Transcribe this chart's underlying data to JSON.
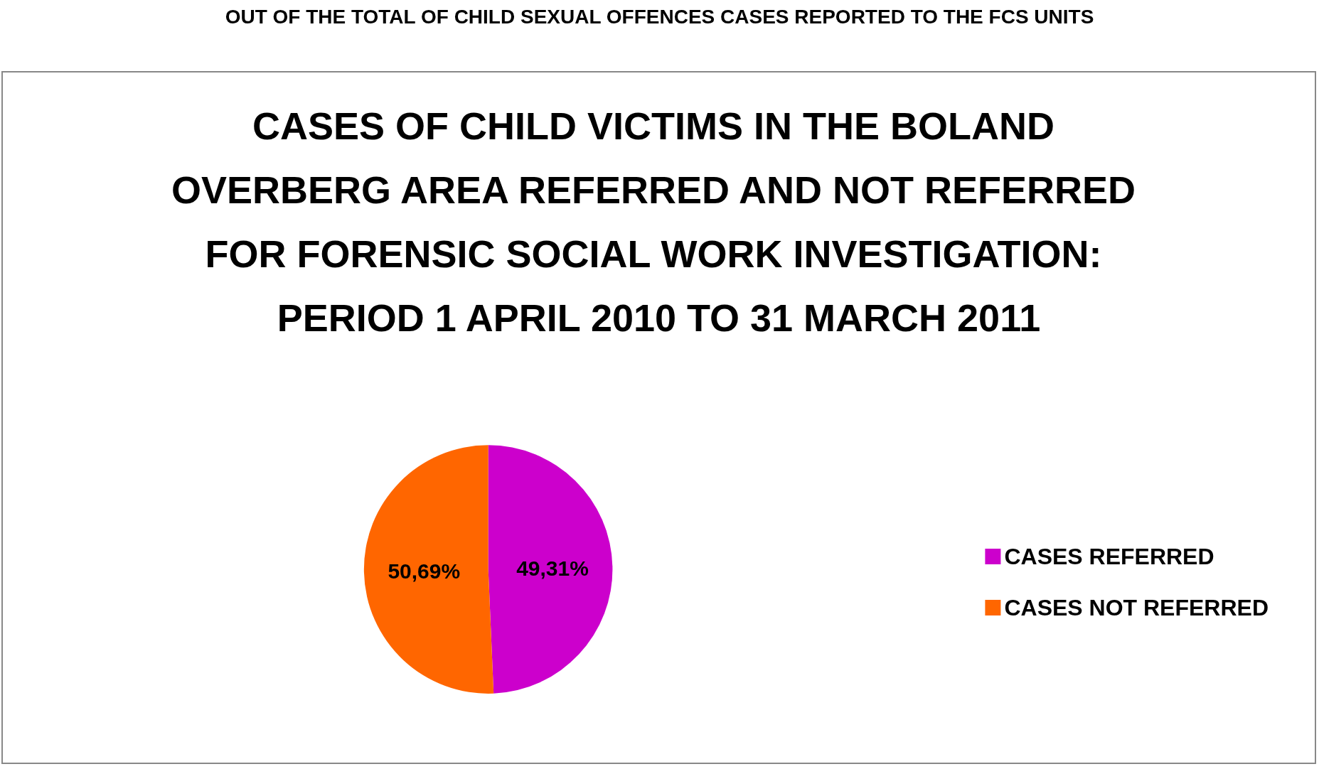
{
  "chart_data": {
    "type": "pie",
    "title": "CASES OF CHILD VICTIMS IN THE BOLAND OVERBERG AREA REFERRED AND NOT REFERRED FOR FORENSIC SOCIAL WORK INVESTIGATION: PERIOD 1 APRIL 2010 TO 31 MARCH 2011",
    "annotations": [
      "OUT OF THE TOTAL OF CHILD SEXUAL OFFENCES CASES REPORTED TO THE FCS UNITS"
    ],
    "categories": [
      "CASES REFERRED",
      "CASES NOT REFERRED"
    ],
    "values": [
      49.31,
      50.69
    ],
    "colors": [
      "#cc00cc",
      "#ff6600"
    ],
    "value_labels": [
      "49,31%",
      "50,69%"
    ],
    "legend": "right"
  }
}
